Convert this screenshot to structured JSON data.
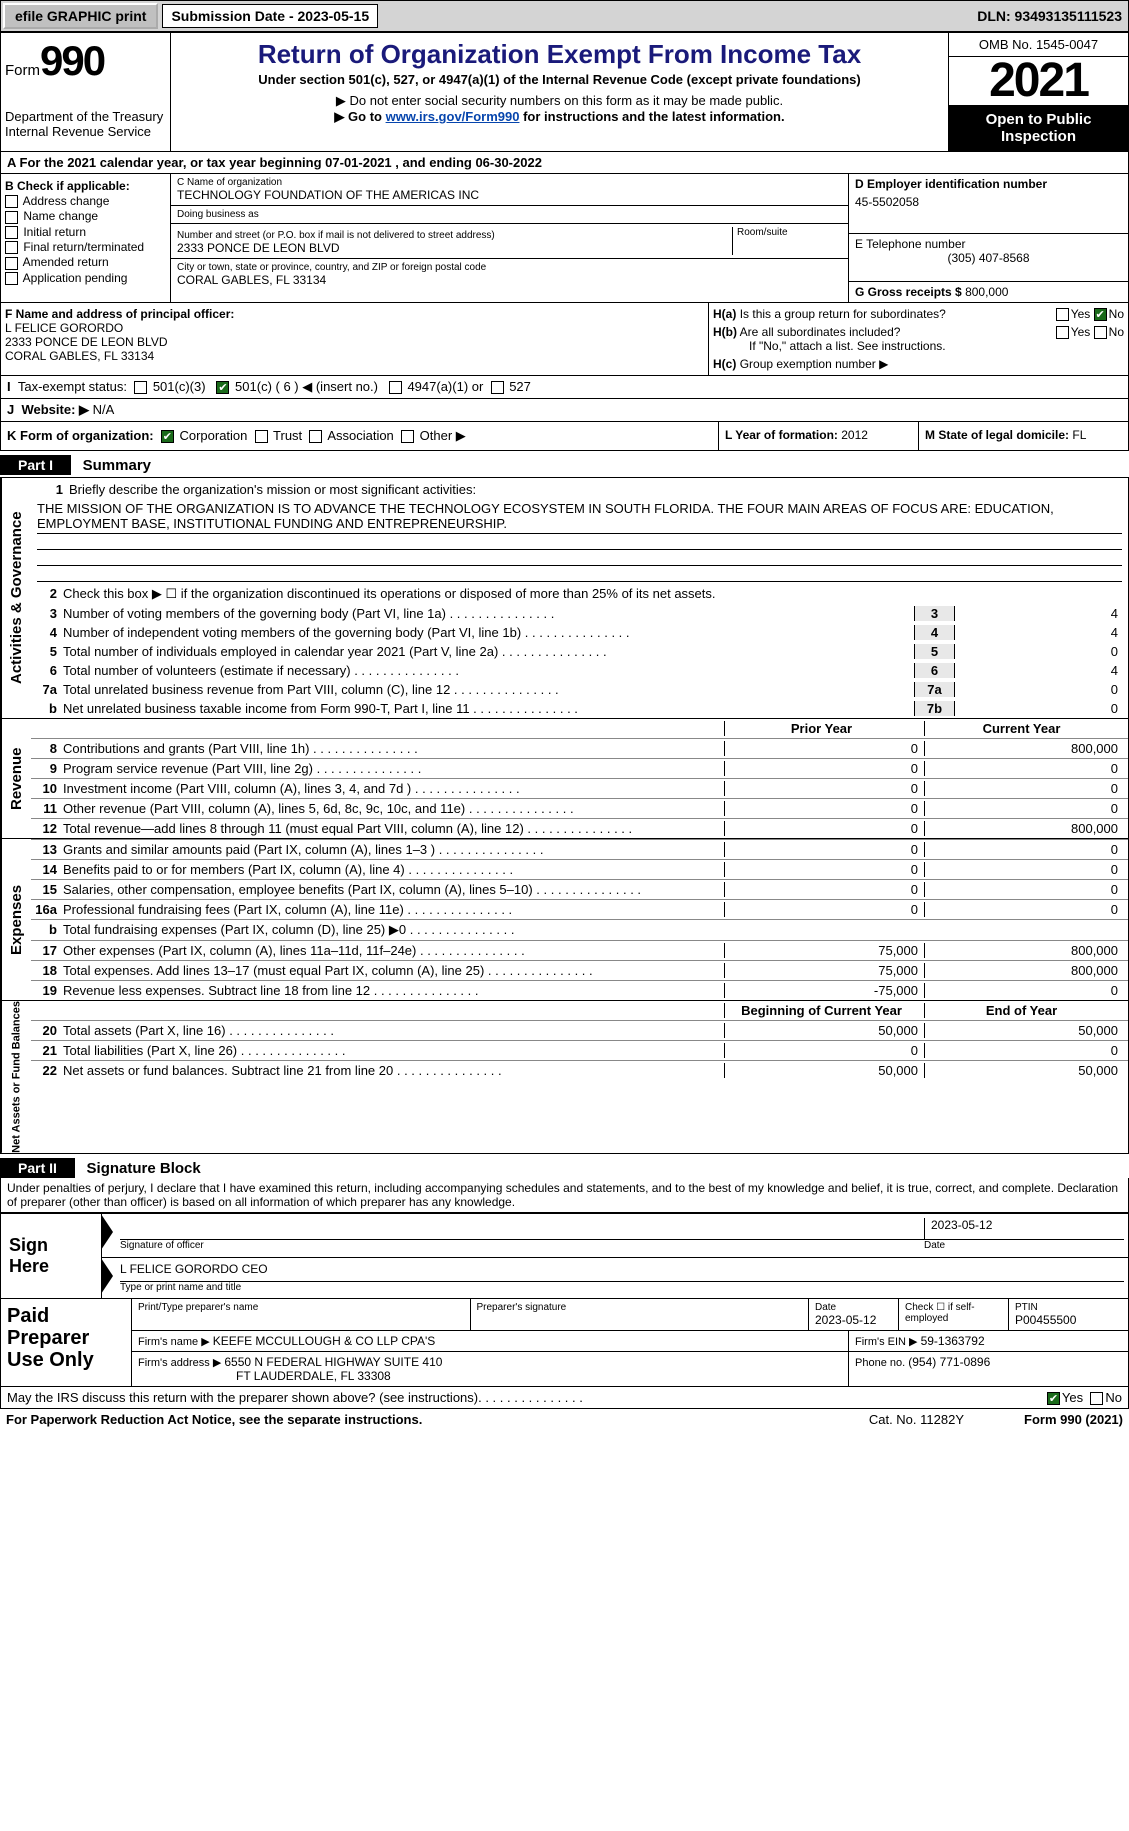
{
  "top": {
    "efile": "efile GRAPHIC print",
    "sub_label": "Submission Date - ",
    "sub_date": "2023-05-15",
    "dln": "DLN: 93493135111523"
  },
  "header": {
    "form_word": "Form",
    "form_num": "990",
    "dept": "Department of the Treasury",
    "irs": "Internal Revenue Service",
    "title": "Return of Organization Exempt From Income Tax",
    "subtitle": "Under section 501(c), 527, or 4947(a)(1) of the Internal Revenue Code (except private foundations)",
    "note1": "Do not enter social security numbers on this form as it may be made public.",
    "note2_pre": "Go to ",
    "note2_link": "www.irs.gov/Form990",
    "note2_post": " for instructions and the latest information.",
    "omb": "OMB No. 1545-0047",
    "year": "2021",
    "inspect": "Open to Public Inspection"
  },
  "a": {
    "text_pre": "For the 2021 calendar year, or tax year beginning ",
    "begin": "07-01-2021",
    "mid": " , and ending ",
    "end": "06-30-2022"
  },
  "b": {
    "label": "B Check if applicable:",
    "items": [
      "Address change",
      "Name change",
      "Initial return",
      "Final return/terminated",
      "Amended return",
      "Application pending"
    ]
  },
  "c": {
    "name_label": "C Name of organization",
    "name": "TECHNOLOGY FOUNDATION OF THE AMERICAS INC",
    "dba_label": "Doing business as",
    "dba": "",
    "addr_label": "Number and street (or P.O. box if mail is not delivered to street address)",
    "room_label": "Room/suite",
    "addr": "2333 PONCE DE LEON BLVD",
    "city_label": "City or town, state or province, country, and ZIP or foreign postal code",
    "city": "CORAL GABLES, FL  33134"
  },
  "d": {
    "label": "D Employer identification number",
    "value": "45-5502058"
  },
  "e": {
    "label": "E Telephone number",
    "value": "(305) 407-8568"
  },
  "g": {
    "label": "G Gross receipts $ ",
    "value": "800,000"
  },
  "f": {
    "label": "F Name and address of principal officer:",
    "name": "L FELICE GORORDO",
    "addr1": "2333 PONCE DE LEON BLVD",
    "addr2": "CORAL GABLES, FL  33134"
  },
  "h": {
    "a_label": "Is this a group return for subordinates?",
    "ha_pre": "H(a)",
    "b_label": "Are all subordinates included?",
    "hb_pre": "H(b)",
    "note": "If \"No,\" attach a list. See instructions.",
    "c_label": "Group exemption number ▶",
    "hc_pre": "H(c)",
    "yes": "Yes",
    "no": "No"
  },
  "i": {
    "label": "Tax-exempt status:",
    "o1": "501(c)(3)",
    "o2_pre": "501(c) ( ",
    "o2_num": "6",
    "o2_post": " ) ◀ (insert no.)",
    "o3": "4947(a)(1) or",
    "o4": "527"
  },
  "j": {
    "label": "Website: ▶",
    "value": " N/A"
  },
  "k": {
    "label": "K Form of organization:",
    "o1": "Corporation",
    "o2": "Trust",
    "o3": "Association",
    "o4": "Other ▶"
  },
  "l": {
    "label": "L Year of formation: ",
    "value": "2012"
  },
  "m": {
    "label": "M State of legal domicile: ",
    "value": "FL"
  },
  "part1": {
    "hdr": "Part I",
    "title": "Summary",
    "l1_label": "Briefly describe the organization's mission or most significant activities:",
    "l1_num": "1",
    "mission": "THE MISSION OF THE ORGANIZATION IS TO ADVANCE THE TECHNOLOGY ECOSYSTEM IN SOUTH FLORIDA. THE FOUR MAIN AREAS OF FOCUS ARE: EDUCATION, EMPLOYMENT BASE, INSTITUTIONAL FUNDING AND ENTREPRENEURSHIP.",
    "l2": "Check this box ▶ ☐ if the organization discontinued its operations or disposed of more than 25% of its net assets.",
    "vert_ag": "Activities & Governance",
    "vert_rev": "Revenue",
    "vert_exp": "Expenses",
    "vert_na": "Net Assets or Fund Balances",
    "lines_ag": [
      {
        "n": "3",
        "d": "Number of voting members of the governing body (Part VI, line 1a)",
        "box": "3",
        "v": "4"
      },
      {
        "n": "4",
        "d": "Number of independent voting members of the governing body (Part VI, line 1b)",
        "box": "4",
        "v": "4"
      },
      {
        "n": "5",
        "d": "Total number of individuals employed in calendar year 2021 (Part V, line 2a)",
        "box": "5",
        "v": "0"
      },
      {
        "n": "6",
        "d": "Total number of volunteers (estimate if necessary)",
        "box": "6",
        "v": "4"
      },
      {
        "n": "7a",
        "d": "Total unrelated business revenue from Part VIII, column (C), line 12",
        "box": "7a",
        "v": "0"
      },
      {
        "n": "b",
        "d": "Net unrelated business taxable income from Form 990-T, Part I, line 11",
        "box": "7b",
        "v": "0"
      }
    ],
    "py_hdr": "Prior Year",
    "cy_hdr": "Current Year",
    "lines_rev": [
      {
        "n": "8",
        "d": "Contributions and grants (Part VIII, line 1h)",
        "py": "0",
        "cy": "800,000"
      },
      {
        "n": "9",
        "d": "Program service revenue (Part VIII, line 2g)",
        "py": "0",
        "cy": "0"
      },
      {
        "n": "10",
        "d": "Investment income (Part VIII, column (A), lines 3, 4, and 7d )",
        "py": "0",
        "cy": "0"
      },
      {
        "n": "11",
        "d": "Other revenue (Part VIII, column (A), lines 5, 6d, 8c, 9c, 10c, and 11e)",
        "py": "0",
        "cy": "0"
      },
      {
        "n": "12",
        "d": "Total revenue—add lines 8 through 11 (must equal Part VIII, column (A), line 12)",
        "py": "0",
        "cy": "800,000"
      }
    ],
    "lines_exp": [
      {
        "n": "13",
        "d": "Grants and similar amounts paid (Part IX, column (A), lines 1–3 )",
        "py": "0",
        "cy": "0"
      },
      {
        "n": "14",
        "d": "Benefits paid to or for members (Part IX, column (A), line 4)",
        "py": "0",
        "cy": "0"
      },
      {
        "n": "15",
        "d": "Salaries, other compensation, employee benefits (Part IX, column (A), lines 5–10)",
        "py": "0",
        "cy": "0"
      },
      {
        "n": "16a",
        "d": "Professional fundraising fees (Part IX, column (A), line 11e)",
        "py": "0",
        "cy": "0"
      },
      {
        "n": "b",
        "d": "Total fundraising expenses (Part IX, column (D), line 25) ▶0",
        "py": "GRAY",
        "cy": "GRAY"
      },
      {
        "n": "17",
        "d": "Other expenses (Part IX, column (A), lines 11a–11d, 11f–24e)",
        "py": "75,000",
        "cy": "800,000"
      },
      {
        "n": "18",
        "d": "Total expenses. Add lines 13–17 (must equal Part IX, column (A), line 25)",
        "py": "75,000",
        "cy": "800,000"
      },
      {
        "n": "19",
        "d": "Revenue less expenses. Subtract line 18 from line 12",
        "py": "-75,000",
        "cy": "0"
      }
    ],
    "boy_hdr": "Beginning of Current Year",
    "eoy_hdr": "End of Year",
    "lines_na": [
      {
        "n": "20",
        "d": "Total assets (Part X, line 16)",
        "py": "50,000",
        "cy": "50,000"
      },
      {
        "n": "21",
        "d": "Total liabilities (Part X, line 26)",
        "py": "0",
        "cy": "0"
      },
      {
        "n": "22",
        "d": "Net assets or fund balances. Subtract line 21 from line 20",
        "py": "50,000",
        "cy": "50,000"
      }
    ]
  },
  "part2": {
    "hdr": "Part II",
    "title": "Signature Block",
    "perjury": "Under penalties of perjury, I declare that I have examined this return, including accompanying schedules and statements, and to the best of my knowledge and belief, it is true, correct, and complete. Declaration of preparer (other than officer) is based on all information of which preparer has any knowledge."
  },
  "sign": {
    "label1": "Sign",
    "label2": "Here",
    "sig_label": "Signature of officer",
    "date_label": "Date",
    "date": "2023-05-12",
    "name": "L FELICE GORORDO  CEO",
    "name_label": "Type or print name and title"
  },
  "paid": {
    "label1": "Paid",
    "label2": "Preparer",
    "label3": "Use Only",
    "print_label": "Print/Type preparer's name",
    "print_name": "",
    "sig_label": "Preparer's signature",
    "date_label": "Date",
    "date": "2023-05-12",
    "check_label": "Check ☐ if self-employed",
    "ptin_label": "PTIN",
    "ptin": "P00455500",
    "firm_label": "Firm's name    ▶ ",
    "firm": "KEEFE MCCULLOUGH & CO LLP CPA'S",
    "ein_label": "Firm's EIN ▶ ",
    "ein": "59-1363792",
    "addr_label": "Firm's address ▶ ",
    "addr1": "6550 N FEDERAL HIGHWAY SUITE 410",
    "addr2": "FT LAUDERDALE, FL  33308",
    "phone_label": "Phone no. ",
    "phone": "(954) 771-0896"
  },
  "footer": {
    "discuss": "May the IRS discuss this return with the preparer shown above? (see instructions)",
    "yes": "Yes",
    "no": "No",
    "paperwork": "For Paperwork Reduction Act Notice, see the separate instructions.",
    "cat": "Cat. No. 11282Y",
    "formrev": "Form 990 (2021)"
  }
}
